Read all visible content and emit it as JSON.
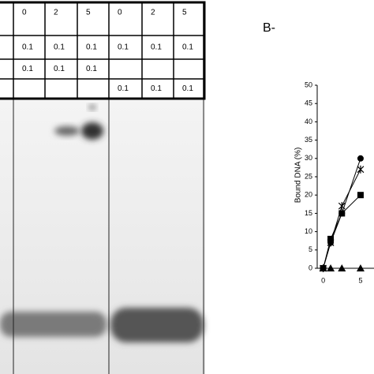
{
  "panel_label": "B-",
  "table": {
    "rows": [
      [
        "0",
        "2",
        "5",
        "0",
        "2",
        "5"
      ],
      [
        "0.1",
        "0.1",
        "0.1",
        "0.1",
        "0.1",
        "0.1"
      ],
      [
        "0.1",
        "0.1",
        "0.1",
        null,
        null,
        null
      ],
      [
        null,
        null,
        null,
        "0.1",
        "0.1",
        "0.1"
      ]
    ]
  },
  "chart_data": {
    "type": "line",
    "y_label": "Bound DNA (%)",
    "x": [
      0,
      1,
      2.5,
      5
    ],
    "series": [
      {
        "color": "#000000",
        "marker": "circle",
        "values": [
          0,
          7,
          15,
          30
        ]
      },
      {
        "color": "#000000",
        "marker": "cross",
        "values": [
          0,
          7,
          17,
          27
        ]
      },
      {
        "color": "#000000",
        "marker": "square",
        "values": [
          0,
          8,
          15,
          20
        ]
      },
      {
        "color": "#000000",
        "marker": "triangle",
        "values": [
          0,
          0,
          0,
          0
        ]
      }
    ],
    "xlim": [
      -0.8,
      6.8
    ],
    "xticks": [
      0,
      5
    ],
    "ylim": [
      0,
      50
    ],
    "yticks": [
      0,
      5,
      10,
      15,
      20,
      25,
      30,
      35,
      40,
      45,
      50
    ]
  }
}
